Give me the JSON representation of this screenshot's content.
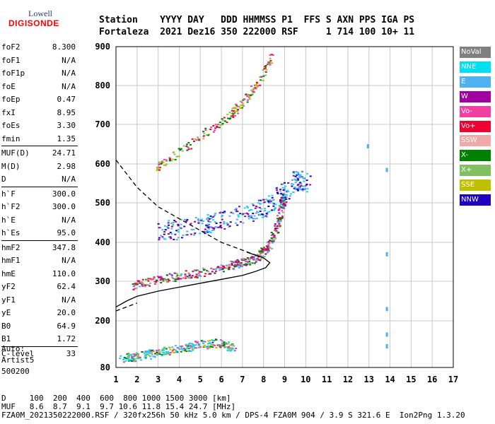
{
  "logo": {
    "line1": "Lowell",
    "line2": "DIGISONDE"
  },
  "header": {
    "line1": "Station    YYYY DAY   DDD HHMMSS P1  FFS S AXN PPS IGA PS",
    "line2": "Fortaleza  2021 Dez16 350 222000 RSF     1 714 100 10+ 11"
  },
  "params": [
    {
      "k": "foF2",
      "v": "8.300"
    },
    {
      "k": "foF1",
      "v": "N/A"
    },
    {
      "k": "foF1p",
      "v": "N/A"
    },
    {
      "k": "foE",
      "v": "N/A"
    },
    {
      "k": "foEp",
      "v": "0.47"
    },
    {
      "k": "fxI",
      "v": "8.95"
    },
    {
      "k": "foEs",
      "v": "3.30"
    },
    {
      "k": "fmin",
      "v": "1.35"
    },
    {
      "k": "MUF(D)",
      "v": "24.71"
    },
    {
      "k": "M(D)",
      "v": "2.98"
    },
    {
      "k": "D",
      "v": "N/A"
    },
    {
      "k": "h`F",
      "v": "300.0"
    },
    {
      "k": "h`F2",
      "v": "300.0"
    },
    {
      "k": "h`E",
      "v": "N/A"
    },
    {
      "k": "h`Es",
      "v": "95.0"
    },
    {
      "k": "hmF2",
      "v": "347.8"
    },
    {
      "k": "hmF1",
      "v": "N/A"
    },
    {
      "k": "hmE",
      "v": "110.0"
    },
    {
      "k": "yF2",
      "v": "62.4"
    },
    {
      "k": "yF1",
      "v": "N/A"
    },
    {
      "k": "yE",
      "v": "20.0"
    },
    {
      "k": "B0",
      "v": "64.9"
    },
    {
      "k": "B1",
      "v": "1.72"
    },
    {
      "k": "C-level",
      "v": "33"
    }
  ],
  "auto": {
    "line1": "Auto:",
    "line2": "Artist5",
    "line3": "500200"
  },
  "legend": [
    {
      "label": "NoVal",
      "color": "#808080"
    },
    {
      "label": "NNE",
      "color": "#00e0f0"
    },
    {
      "label": "E",
      "color": "#50b0f0"
    },
    {
      "label": "W",
      "color": "#a000a0"
    },
    {
      "label": "Vo-",
      "color": "#f040a0"
    },
    {
      "label": "Vo+",
      "color": "#f00030"
    },
    {
      "label": "SSW",
      "color": "#f0a8a8"
    },
    {
      "label": "X-",
      "color": "#008000"
    },
    {
      "label": "X+",
      "color": "#80c060"
    },
    {
      "label": "SSE",
      "color": "#c0c000"
    },
    {
      "label": "NNW",
      "color": "#2000c0"
    }
  ],
  "footer": {
    "line1": "D     100  200  400  600  800 1000 1500 3000 [km]",
    "line2": "MUF   8.6  8.7  9.1  9.7 10.6 11.8 15.4 24.7 [MHz]",
    "line3": "FZA0M_2021350222000.RSF / 320fx256h 50 kHz 5.0 km / DPS-4 FZA0M 904 / 3.9 S 321.6 E  Ion2Png 1.3.20"
  },
  "chart_data": {
    "type": "scatter",
    "xlim": [
      1,
      17
    ],
    "ylim": [
      80,
      900
    ],
    "x_ticks": [
      1,
      2,
      3,
      4,
      5,
      6,
      7,
      8,
      9,
      10,
      11,
      12,
      13,
      14,
      15,
      16,
      17
    ],
    "y_ticks": [
      80,
      200,
      300,
      400,
      500,
      600,
      700,
      800,
      900
    ],
    "grid": true,
    "ordinary_trace": [
      [
        1.8,
        290
      ],
      [
        2.5,
        300
      ],
      [
        3.5,
        310
      ],
      [
        4.5,
        320
      ],
      [
        5.5,
        330
      ],
      [
        6.3,
        340
      ],
      [
        7.0,
        350
      ],
      [
        7.6,
        360
      ],
      [
        8.0,
        380
      ],
      [
        8.3,
        400
      ],
      [
        8.6,
        440
      ],
      [
        8.8,
        480
      ],
      [
        8.95,
        520
      ]
    ],
    "o_trace_2hop": [
      [
        2.9,
        590
      ],
      [
        3.5,
        615
      ],
      [
        4.5,
        650
      ],
      [
        5.5,
        690
      ],
      [
        6.5,
        730
      ],
      [
        7.0,
        760
      ],
      [
        7.6,
        800
      ],
      [
        8.0,
        840
      ],
      [
        8.4,
        880
      ]
    ],
    "spread_f": [
      [
        3,
        430
      ],
      [
        5,
        440
      ],
      [
        6,
        460
      ],
      [
        7.5,
        480
      ],
      [
        8.5,
        500
      ],
      [
        9.5,
        560
      ],
      [
        10,
        550
      ]
    ],
    "es_layer": [
      [
        1.3,
        105
      ],
      [
        2,
        110
      ],
      [
        3,
        120
      ],
      [
        4,
        130
      ],
      [
        5,
        140
      ],
      [
        6,
        145
      ],
      [
        6.5,
        130
      ]
    ],
    "profile_solid": [
      [
        1.0,
        235
      ],
      [
        1.5,
        250
      ],
      [
        2.0,
        262
      ],
      [
        3.0,
        275
      ],
      [
        4.0,
        285
      ],
      [
        5.0,
        295
      ],
      [
        6.0,
        305
      ],
      [
        7.0,
        315
      ],
      [
        7.6,
        325
      ],
      [
        8.1,
        335
      ],
      [
        8.3,
        347.8
      ],
      [
        8.0,
        360
      ],
      [
        7.2,
        375
      ]
    ],
    "profile_dashed": [
      [
        1.0,
        610
      ],
      [
        2.0,
        540
      ],
      [
        3.0,
        490
      ],
      [
        4.0,
        460
      ],
      [
        5.0,
        430
      ],
      [
        6.0,
        400
      ],
      [
        7.0,
        380
      ],
      [
        7.5,
        370
      ],
      [
        8.0,
        360
      ]
    ],
    "profile_dashed_low": [
      [
        1.0,
        225
      ],
      [
        1.5,
        235
      ],
      [
        2.0,
        245
      ]
    ],
    "isolated": [
      [
        12.9,
        650
      ],
      [
        13.8,
        590
      ],
      [
        13.8,
        375
      ],
      [
        13.8,
        235
      ],
      [
        13.8,
        170
      ],
      [
        13.8,
        140
      ]
    ]
  }
}
